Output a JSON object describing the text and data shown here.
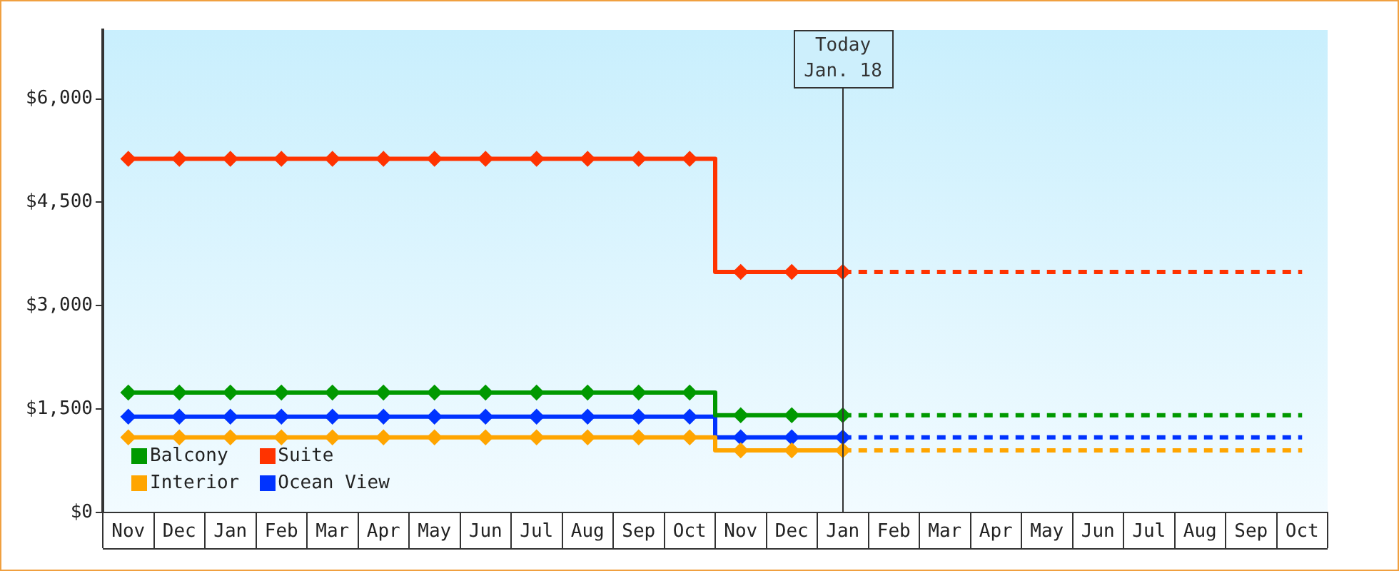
{
  "chart_data": {
    "type": "step",
    "categories": [
      "Nov",
      "Dec",
      "Jan",
      "Feb",
      "Mar",
      "Apr",
      "May",
      "Jun",
      "Jul",
      "Aug",
      "Sep",
      "Oct",
      "Nov",
      "Dec",
      "Jan",
      "Feb",
      "Mar",
      "Apr",
      "May",
      "Jun",
      "Jul",
      "Aug",
      "Sep",
      "Oct"
    ],
    "ylim": [
      0,
      7000
    ],
    "yticks": [
      {
        "value": 0,
        "label": "$0"
      },
      {
        "value": 1500,
        "label": "$1,500"
      },
      {
        "value": 3000,
        "label": "$3,000"
      },
      {
        "value": 4500,
        "label": "$4,500"
      },
      {
        "value": 6000,
        "label": "$6,000"
      }
    ],
    "marker": "diamond",
    "legend": "bottom left",
    "series": [
      {
        "name": "Balcony",
        "color": "#009900",
        "values": [
          1740,
          1740,
          1740,
          1740,
          1740,
          1740,
          1740,
          1740,
          1740,
          1740,
          1740,
          1740,
          1410,
          1410,
          1410,
          null,
          null,
          null,
          null,
          null,
          null,
          null,
          null,
          null
        ]
      },
      {
        "name": "Suite",
        "color": "#ff3300",
        "values": [
          5130,
          5130,
          5130,
          5130,
          5130,
          5130,
          5130,
          5130,
          5130,
          5130,
          5130,
          5130,
          3490,
          3490,
          3490,
          null,
          null,
          null,
          null,
          null,
          null,
          null,
          null,
          null
        ]
      },
      {
        "name": "Interior",
        "color": "#ffa500",
        "values": [
          1090,
          1090,
          1090,
          1090,
          1090,
          1090,
          1090,
          1090,
          1090,
          1090,
          1090,
          1090,
          900,
          900,
          900,
          null,
          null,
          null,
          null,
          null,
          null,
          null,
          null,
          null
        ]
      },
      {
        "name": "Ocean View",
        "color": "#0033ff",
        "values": [
          1390,
          1390,
          1390,
          1390,
          1390,
          1390,
          1390,
          1390,
          1390,
          1390,
          1390,
          1390,
          1090,
          1090,
          1090,
          null,
          null,
          null,
          null,
          null,
          null,
          null,
          null,
          null
        ]
      },
      {
        "color": "#009900",
        "values": [
          null,
          null,
          null,
          null,
          null,
          null,
          null,
          null,
          null,
          null,
          null,
          null,
          null,
          null,
          1410,
          1410,
          1410,
          1410,
          1410,
          1410,
          1410,
          1410,
          1410,
          1410
        ],
        "line_style": "dashed",
        "marker": "none"
      },
      {
        "color": "#ff3300",
        "values": [
          null,
          null,
          null,
          null,
          null,
          null,
          null,
          null,
          null,
          null,
          null,
          null,
          null,
          null,
          3490,
          3490,
          3490,
          3490,
          3490,
          3490,
          3490,
          3490,
          3490,
          3490
        ],
        "line_style": "dashed",
        "marker": "none"
      },
      {
        "color": "#ffa500",
        "values": [
          null,
          null,
          null,
          null,
          null,
          null,
          null,
          null,
          null,
          null,
          null,
          null,
          null,
          null,
          900,
          900,
          900,
          900,
          900,
          900,
          900,
          900,
          900,
          900
        ],
        "line_style": "dashed",
        "marker": "none"
      },
      {
        "color": "#0033ff",
        "values": [
          null,
          null,
          null,
          null,
          null,
          null,
          null,
          null,
          null,
          null,
          null,
          null,
          null,
          null,
          1090,
          1090,
          1090,
          1090,
          1090,
          1090,
          1090,
          1090,
          1090,
          1090
        ],
        "line_style": "dashed",
        "marker": "none"
      }
    ],
    "annotations": [
      "Today\nJan. 18"
    ]
  }
}
